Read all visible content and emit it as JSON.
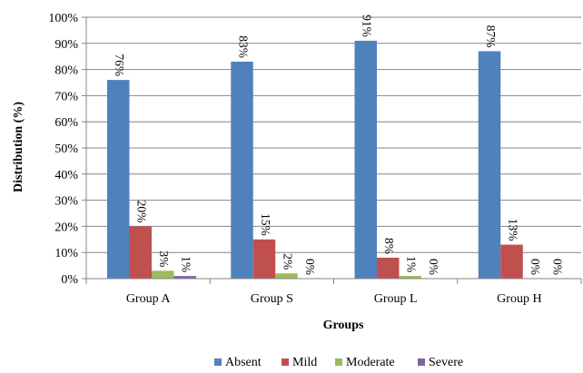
{
  "chart_data": {
    "type": "bar",
    "title": "",
    "xlabel": "Groups",
    "ylabel": "Distribution (%)",
    "ylim": [
      0,
      100
    ],
    "y_ticks": [
      0,
      10,
      20,
      30,
      40,
      50,
      60,
      70,
      80,
      90,
      100
    ],
    "y_tick_format": "{v}%",
    "grid": true,
    "legend_position": "bottom",
    "categories": [
      "Group A",
      "Group S",
      "Group L",
      "Group H"
    ],
    "series": [
      {
        "name": "Absent",
        "color": "#4F81BD",
        "values": [
          76,
          83,
          91,
          87
        ]
      },
      {
        "name": "Mild",
        "color": "#C0504D",
        "values": [
          20,
          15,
          8,
          13
        ]
      },
      {
        "name": "Moderate",
        "color": "#9BBB59",
        "values": [
          3,
          2,
          1,
          0
        ]
      },
      {
        "name": "Severe",
        "color": "#8064A2",
        "values": [
          1,
          0,
          0,
          0
        ]
      }
    ],
    "data_labels": [
      [
        "76%",
        "20%",
        "3%",
        "1%"
      ],
      [
        "83%",
        "15%",
        "2%",
        "0%"
      ],
      [
        "91%",
        "8%",
        "1%",
        "0%"
      ],
      [
        "87%",
        "13%",
        "0%",
        "0%"
      ]
    ]
  }
}
